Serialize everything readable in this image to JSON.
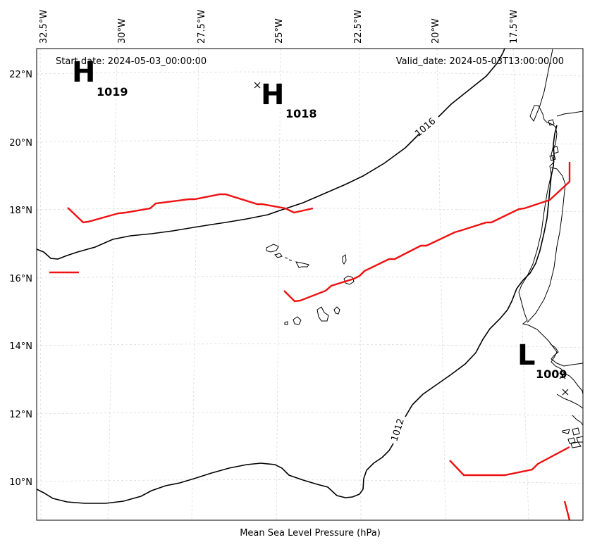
{
  "map": {
    "start_label": "Start date: 2024-05-03_00:00:00",
    "valid_label": "Valid_date: 2024-05-03T13:00:00.00",
    "xlabel": "Mean Sea Level Pressure (hPa)",
    "lon_ticks": [
      {
        "label": "32.5°W",
        "value": -32.5
      },
      {
        "label": "30°W",
        "value": -30
      },
      {
        "label": "27.5°W",
        "value": -27.5
      },
      {
        "label": "25°W",
        "value": -25
      },
      {
        "label": "22.5°W",
        "value": -22.5
      },
      {
        "label": "20°W",
        "value": -20
      },
      {
        "label": "17.5°W",
        "value": -17.5
      }
    ],
    "lat_ticks": [
      {
        "label": "22°N",
        "value": 22
      },
      {
        "label": "20°N",
        "value": 20
      },
      {
        "label": "18°N",
        "value": 18
      },
      {
        "label": "16°N",
        "value": 16
      },
      {
        "label": "14°N",
        "value": 14
      },
      {
        "label": "12°N",
        "value": 12
      },
      {
        "label": "10°N",
        "value": 10
      }
    ],
    "isobars": [
      {
        "label": "1016",
        "value": 1016
      },
      {
        "label": "1012",
        "value": 1012
      }
    ],
    "pressure_centers": [
      {
        "type": "H",
        "pressure": "1019",
        "partial": true
      },
      {
        "type": "H",
        "pressure": "1018"
      },
      {
        "type": "L",
        "pressure": "1009"
      }
    ],
    "colors": {
      "isobar": "#000000",
      "front": "#ee1111",
      "coastline": "#000000",
      "grid": "#cccccc"
    }
  }
}
